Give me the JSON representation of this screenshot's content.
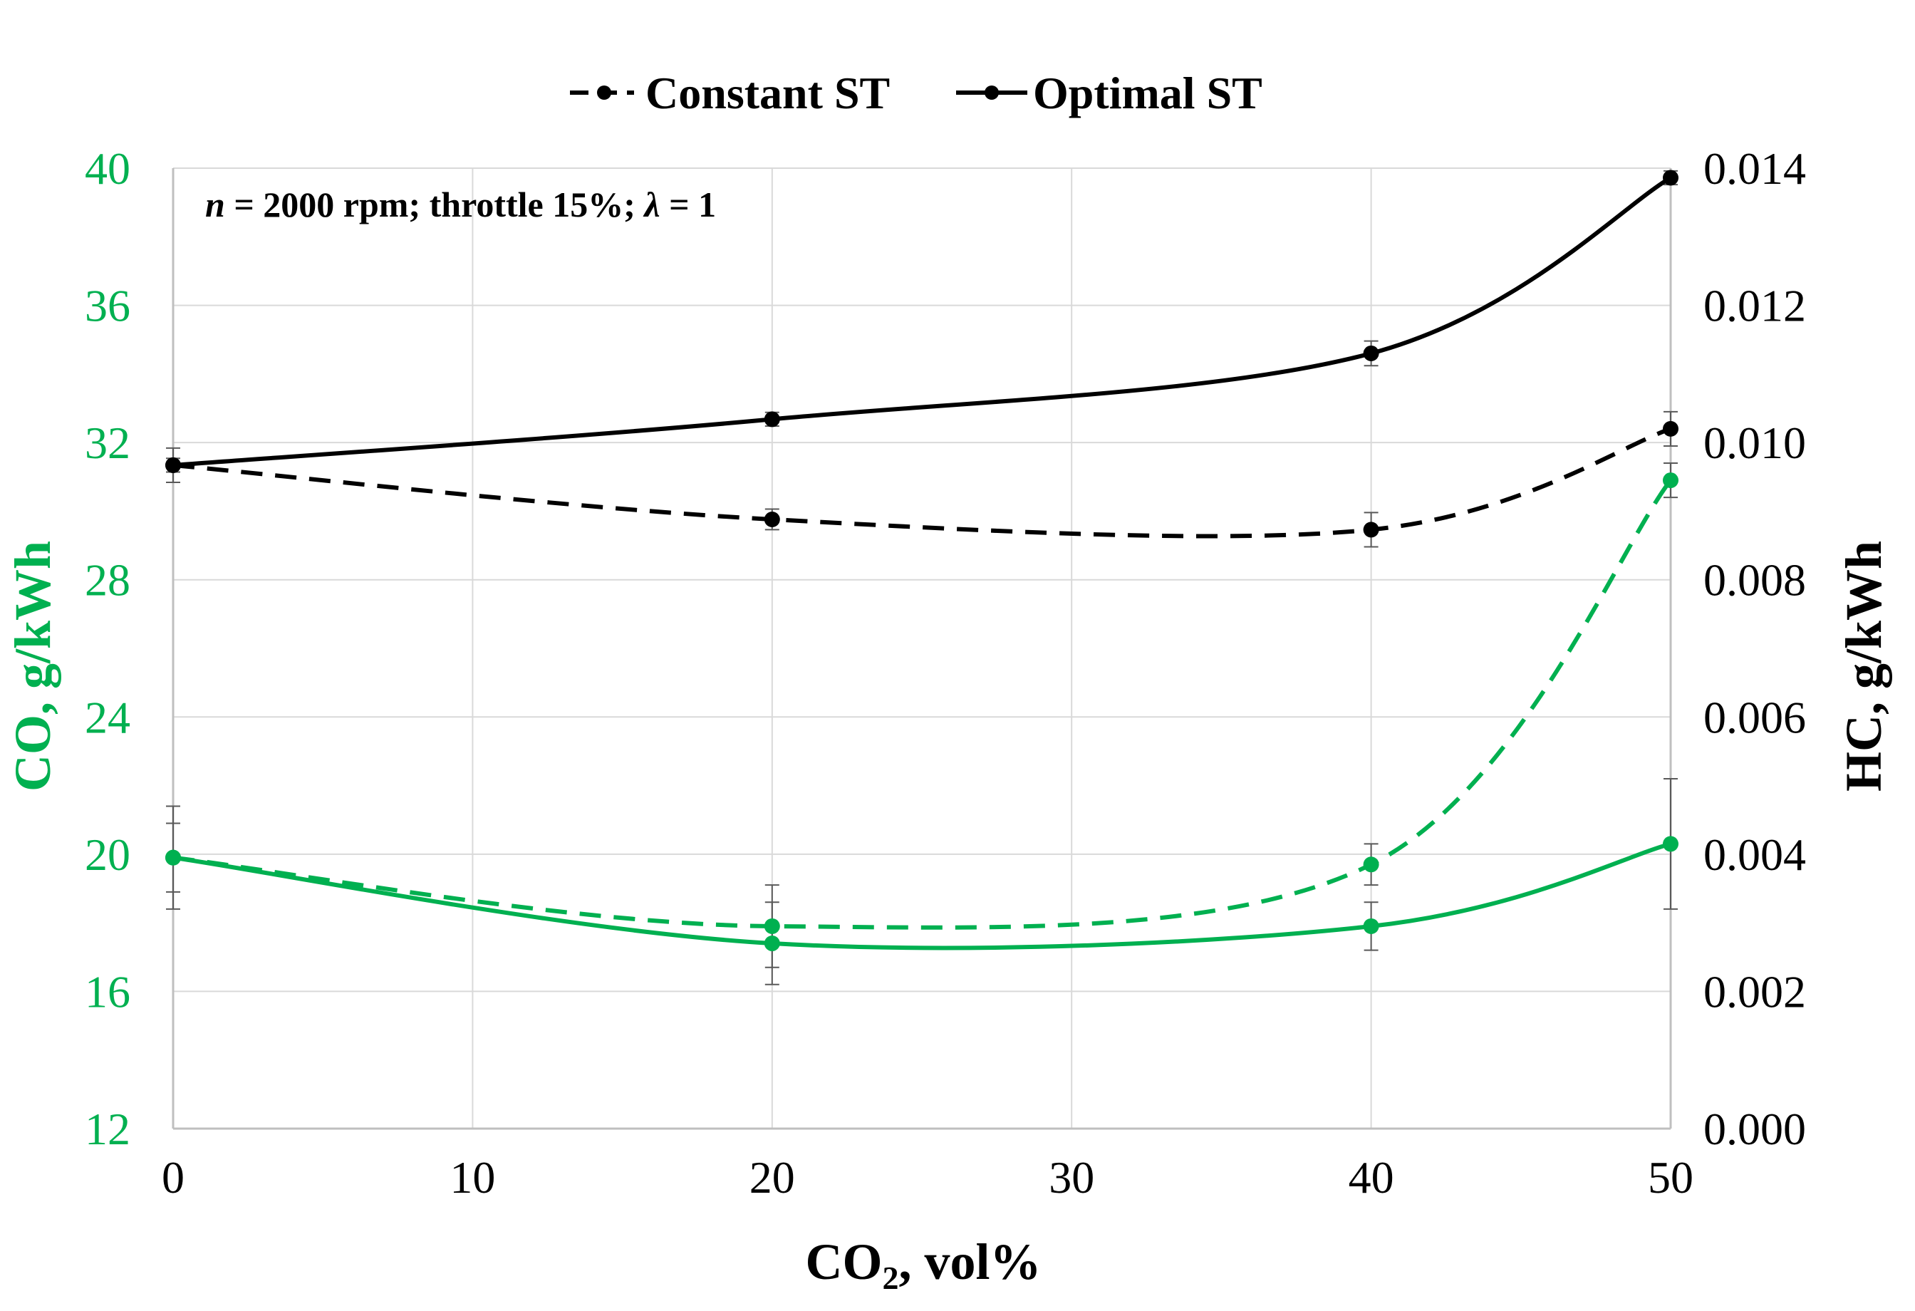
{
  "chart_data": {
    "type": "line",
    "annotation": {
      "var": "n",
      "rest": " = 2000 rpm; throttle 15%; ",
      "lambda": "λ",
      "lambda_rest": " = 1"
    },
    "xlabel": {
      "main": "CO",
      "sub": "2",
      "rest": ", vol%"
    },
    "ylabel_left": "CO, g/kWh",
    "ylabel_right": "HC, g/kWh",
    "xlim": [
      0,
      50
    ],
    "ylim_left": [
      12,
      40
    ],
    "ylim_right": [
      0,
      0.014
    ],
    "x_ticks": [
      "0",
      "10",
      "20",
      "30",
      "40",
      "50"
    ],
    "y_left_ticks": [
      "12",
      "16",
      "20",
      "24",
      "28",
      "32",
      "36",
      "40"
    ],
    "y_right_ticks": [
      "0.000",
      "0.002",
      "0.004",
      "0.006",
      "0.008",
      "0.010",
      "0.012",
      "0.014"
    ],
    "grid": true,
    "legend_position": "top-center",
    "legend": [
      {
        "label": "Constant ST",
        "style": "dashed"
      },
      {
        "label": "Optimal ST",
        "style": "solid"
      }
    ],
    "colors": {
      "co": "#00b050",
      "hc": "#000000",
      "grid": "#d9d9d9",
      "errorbar": "#595959"
    },
    "series": [
      {
        "quantity": "HC",
        "axis": "right",
        "style": "dashed",
        "x": [
          0,
          20,
          40,
          50
        ],
        "y": [
          0.00967,
          0.00888,
          0.00873,
          0.0102
        ],
        "err": [
          0.00025,
          0.00015,
          0.00025,
          0.00025
        ]
      },
      {
        "quantity": "HC",
        "axis": "right",
        "style": "solid",
        "x": [
          0,
          20,
          40,
          50
        ],
        "y": [
          0.00967,
          0.01034,
          0.0113,
          0.01386
        ],
        "err": [
          0.0001,
          0.0001,
          0.00018,
          0.0001
        ]
      },
      {
        "quantity": "CO",
        "axis": "left",
        "style": "dashed",
        "x": [
          0,
          20,
          40,
          50
        ],
        "y": [
          19.9,
          17.9,
          19.7,
          30.9
        ],
        "err": [
          1.5,
          1.2,
          0.6,
          0.5
        ]
      },
      {
        "quantity": "CO",
        "axis": "left",
        "style": "solid",
        "x": [
          0,
          20,
          40,
          50
        ],
        "y": [
          19.9,
          17.4,
          17.9,
          20.3
        ],
        "err": [
          1.0,
          1.2,
          0.7,
          1.9
        ]
      }
    ]
  }
}
